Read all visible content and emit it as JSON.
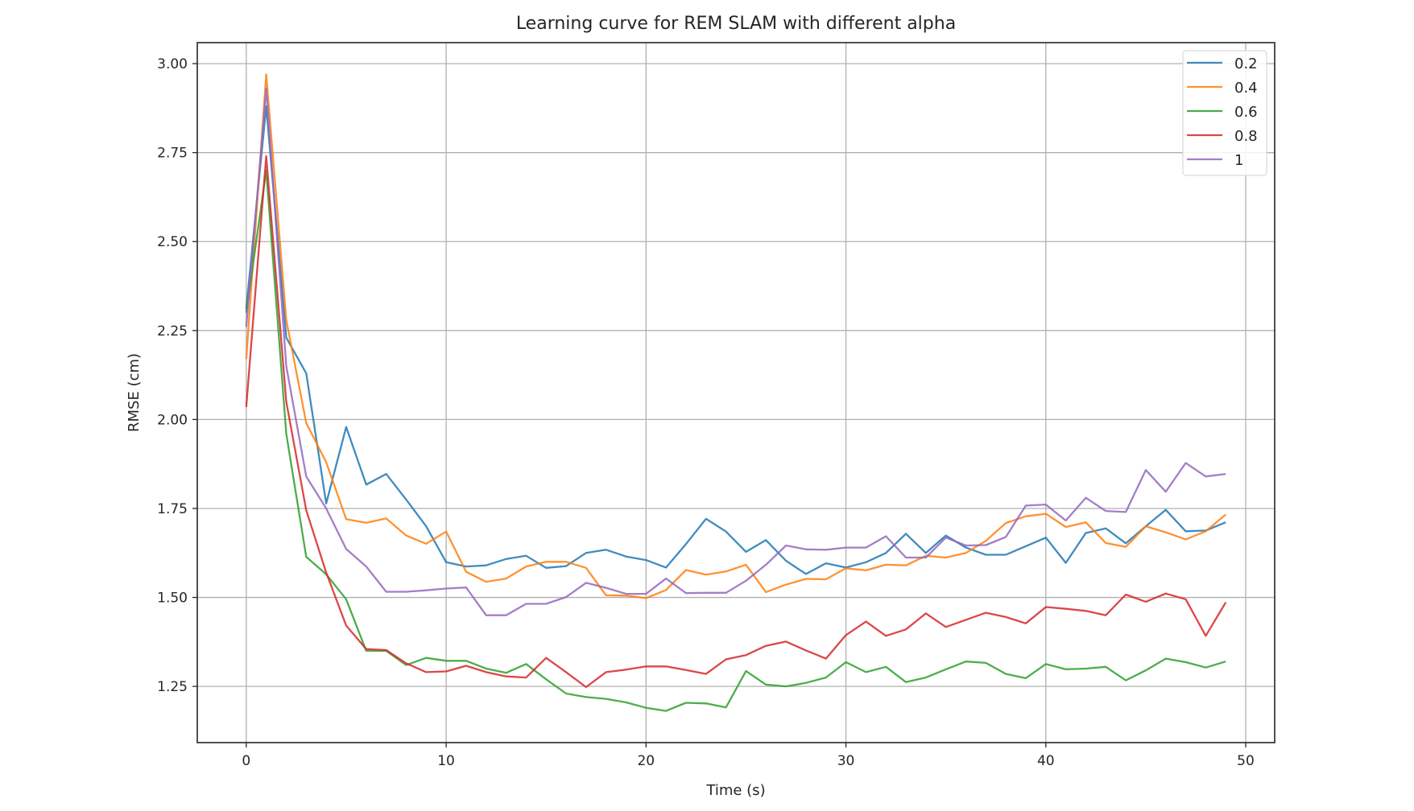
{
  "chart_data": {
    "type": "line",
    "title": "Learning curve for REM SLAM with different alpha",
    "xlabel": "Time (s)",
    "ylabel": "RMSE (cm)",
    "xlim": [
      -2.45,
      51.45
    ],
    "ylim": [
      1.092,
      3.059
    ],
    "xticks": [
      0,
      10,
      20,
      30,
      40,
      50
    ],
    "xtick_labels": [
      "0",
      "10",
      "20",
      "30",
      "40",
      "50"
    ],
    "yticks": [
      1.25,
      1.5,
      1.75,
      2.0,
      2.25,
      2.5,
      2.75,
      3.0
    ],
    "ytick_labels": [
      "1.25",
      "1.50",
      "1.75",
      "2.00",
      "2.25",
      "2.50",
      "2.75",
      "3.00"
    ],
    "grid": true,
    "legend_position": "top-right",
    "x": [
      0,
      1,
      2,
      3,
      4,
      5,
      6,
      7,
      8,
      9,
      10,
      11,
      12,
      13,
      14,
      15,
      16,
      17,
      18,
      19,
      20,
      21,
      22,
      23,
      24,
      25,
      26,
      27,
      28,
      29,
      30,
      31,
      32,
      33,
      34,
      35,
      36,
      37,
      38,
      39,
      40,
      41,
      42,
      43,
      44,
      45,
      46,
      47,
      48,
      49
    ],
    "series": [
      {
        "name": "0.2",
        "color": "#1f77b4",
        "values": [
          2.31,
          2.88,
          2.23,
          2.13,
          1.764,
          1.979,
          1.817,
          1.847,
          1.775,
          1.7,
          1.599,
          1.587,
          1.59,
          1.608,
          1.617,
          1.583,
          1.588,
          1.625,
          1.634,
          1.615,
          1.605,
          1.584,
          1.65,
          1.721,
          1.685,
          1.628,
          1.661,
          1.603,
          1.566,
          1.596,
          1.584,
          1.599,
          1.625,
          1.679,
          1.625,
          1.674,
          1.64,
          1.62,
          1.62,
          1.644,
          1.668,
          1.597,
          1.681,
          1.694,
          1.652,
          1.7,
          1.746,
          1.686,
          1.688,
          1.711
        ]
      },
      {
        "name": "0.4",
        "color": "#ff7f0e",
        "values": [
          2.17,
          2.97,
          2.28,
          1.99,
          1.88,
          1.72,
          1.71,
          1.722,
          1.674,
          1.651,
          1.685,
          1.572,
          1.544,
          1.553,
          1.587,
          1.6,
          1.6,
          1.583,
          1.506,
          1.505,
          1.498,
          1.521,
          1.577,
          1.564,
          1.573,
          1.592,
          1.515,
          1.536,
          1.552,
          1.551,
          1.582,
          1.576,
          1.592,
          1.59,
          1.617,
          1.612,
          1.625,
          1.659,
          1.709,
          1.728,
          1.735,
          1.698,
          1.711,
          1.653,
          1.642,
          1.7,
          1.683,
          1.663,
          1.686,
          1.733
        ]
      },
      {
        "name": "0.6",
        "color": "#2ca02c",
        "values": [
          2.3,
          2.7,
          1.96,
          1.614,
          1.565,
          1.495,
          1.35,
          1.35,
          1.31,
          1.33,
          1.322,
          1.322,
          1.3,
          1.288,
          1.313,
          1.27,
          1.23,
          1.22,
          1.215,
          1.205,
          1.19,
          1.181,
          1.204,
          1.202,
          1.191,
          1.293,
          1.255,
          1.25,
          1.26,
          1.275,
          1.318,
          1.29,
          1.305,
          1.262,
          1.275,
          1.298,
          1.32,
          1.316,
          1.285,
          1.273,
          1.313,
          1.298,
          1.3,
          1.305,
          1.267,
          1.295,
          1.328,
          1.318,
          1.303,
          1.32
        ]
      },
      {
        "name": "0.8",
        "color": "#d62728",
        "values": [
          2.035,
          2.74,
          2.05,
          1.745,
          1.57,
          1.421,
          1.355,
          1.352,
          1.315,
          1.29,
          1.292,
          1.308,
          1.29,
          1.278,
          1.275,
          1.33,
          1.29,
          1.248,
          1.29,
          1.297,
          1.306,
          1.306,
          1.296,
          1.285,
          1.326,
          1.338,
          1.364,
          1.376,
          1.351,
          1.328,
          1.394,
          1.432,
          1.392,
          1.41,
          1.455,
          1.417,
          1.437,
          1.457,
          1.445,
          1.427,
          1.473,
          1.468,
          1.462,
          1.45,
          1.508,
          1.488,
          1.511,
          1.495,
          1.392,
          1.486
        ]
      },
      {
        "name": "1",
        "color": "#9467bd",
        "values": [
          2.26,
          2.93,
          2.15,
          1.84,
          1.75,
          1.636,
          1.587,
          1.516,
          1.516,
          1.52,
          1.525,
          1.528,
          1.45,
          1.45,
          1.482,
          1.482,
          1.501,
          1.541,
          1.527,
          1.51,
          1.51,
          1.553,
          1.512,
          1.513,
          1.513,
          1.547,
          1.592,
          1.646,
          1.635,
          1.634,
          1.64,
          1.64,
          1.672,
          1.612,
          1.612,
          1.668,
          1.646,
          1.647,
          1.67,
          1.758,
          1.761,
          1.716,
          1.78,
          1.743,
          1.74,
          1.858,
          1.797,
          1.878,
          1.84,
          1.847
        ]
      }
    ]
  }
}
